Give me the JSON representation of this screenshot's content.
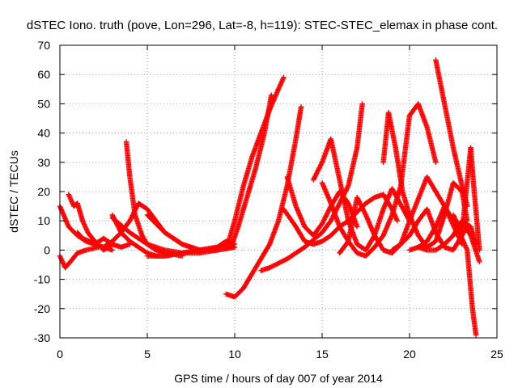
{
  "chart_data": {
    "type": "scatter",
    "title": "dSTEC Iono. truth (pove, Lon=296, Lat=-8, h=119): STEC-STEC_elemax in phase cont.",
    "xlabel": "GPS time / hours of day 007 of year 2014",
    "ylabel": "dSTEC  / TECUs",
    "xlim": [
      0,
      25
    ],
    "ylim": [
      -30,
      70
    ],
    "xticks": [
      0,
      5,
      10,
      15,
      20,
      25
    ],
    "yticks": [
      -30,
      -20,
      -10,
      0,
      10,
      20,
      30,
      40,
      50,
      60,
      70
    ],
    "grid": true,
    "marker": "+",
    "color": "#ff0000",
    "series": [
      {
        "x": [
          0,
          0.5,
          1,
          1.5,
          2,
          2.5,
          3
        ],
        "y": [
          15,
          8,
          5,
          3,
          2,
          1,
          0
        ]
      },
      {
        "x": [
          0,
          0.3,
          0.6,
          1,
          1.5,
          2.2
        ],
        "y": [
          -2,
          -6,
          -4,
          -1,
          0,
          1
        ]
      },
      {
        "x": [
          0.5,
          0.8,
          1,
          1.3,
          1.6,
          2,
          2.5,
          3
        ],
        "y": [
          19,
          15,
          16,
          10,
          6,
          3,
          0,
          2
        ]
      },
      {
        "x": [
          1,
          1.3,
          1.7,
          2,
          2.5,
          3,
          3.5,
          4
        ],
        "y": [
          6,
          4,
          3,
          2,
          4,
          2,
          1,
          2
        ]
      },
      {
        "x": [
          3.8,
          4,
          4.3,
          4.7,
          5,
          5.5,
          6,
          7
        ],
        "y": [
          37,
          25,
          12,
          5,
          2,
          0,
          -1,
          -2
        ]
      },
      {
        "x": [
          3,
          3.5,
          4,
          4.5,
          5,
          5.5,
          6,
          7,
          8,
          9,
          9.7
        ],
        "y": [
          12,
          6,
          3,
          1,
          -1,
          -2,
          -2,
          -1,
          0,
          1,
          2
        ]
      },
      {
        "x": [
          2.5,
          3,
          3.5,
          4,
          4.5,
          5,
          6,
          7,
          8,
          9
        ],
        "y": [
          1,
          3,
          6,
          10,
          16,
          14,
          6,
          2,
          0,
          0
        ]
      },
      {
        "x": [
          3,
          4,
          5,
          6,
          7,
          8,
          9,
          10
        ],
        "y": [
          11,
          6,
          2,
          0,
          -1,
          -1,
          0,
          1
        ]
      },
      {
        "x": [
          5,
          6,
          7,
          8,
          9,
          10
        ],
        "y": [
          12,
          6,
          2,
          0,
          0,
          1
        ]
      },
      {
        "x": [
          5,
          6,
          7,
          8,
          9,
          9.5,
          10
        ],
        "y": [
          -2,
          -2,
          -1,
          0,
          1,
          3,
          2
        ]
      },
      {
        "x": [
          9.6,
          10,
          10.5,
          11,
          11.5,
          12,
          12.5,
          12.8
        ],
        "y": [
          2,
          10,
          22,
          32,
          40,
          48,
          55,
          59
        ]
      },
      {
        "x": [
          9.8,
          10.2,
          10.7,
          11.2,
          11.7,
          12.1
        ],
        "y": [
          1,
          8,
          18,
          28,
          40,
          53
        ]
      },
      {
        "x": [
          9.5,
          10,
          10.5,
          11,
          11.5,
          12,
          12.5,
          13,
          13.5,
          13.8
        ],
        "y": [
          -15,
          -16,
          -13,
          -8,
          -3,
          2,
          10,
          22,
          38,
          49
        ]
      },
      {
        "x": [
          12.8,
          13.5,
          14,
          14.5,
          15,
          15.5,
          16,
          16.5,
          17,
          17.5,
          18,
          18.5,
          19,
          19.3
        ],
        "y": [
          14,
          8,
          3,
          2,
          3,
          5,
          8,
          10,
          13,
          16,
          18,
          19,
          14,
          10
        ]
      },
      {
        "x": [
          11.5,
          12,
          13,
          14,
          15,
          15.5,
          16,
          16.5,
          17,
          17.3
        ],
        "y": [
          -7,
          -6,
          -3,
          1,
          6,
          10,
          16,
          22,
          35,
          50
        ]
      },
      {
        "x": [
          13,
          13.5,
          14,
          14.5,
          15,
          15.5,
          16,
          16.5,
          17
        ],
        "y": [
          25,
          15,
          8,
          5,
          9,
          15,
          20,
          16,
          8
        ]
      },
      {
        "x": [
          14.5,
          15,
          15.5,
          16,
          16.5,
          17,
          17.5,
          18,
          18.5,
          19,
          20
        ],
        "y": [
          24,
          30,
          38,
          24,
          10,
          2,
          0,
          5,
          14,
          21,
          10
        ]
      },
      {
        "x": [
          15,
          15.5,
          16,
          16.5,
          17,
          17.5,
          18,
          18.5,
          19,
          19.5,
          20,
          20.5,
          21,
          21.5
        ],
        "y": [
          23,
          16,
          8,
          3,
          -1,
          -2,
          1,
          5,
          12,
          22,
          46,
          50,
          42,
          30
        ]
      },
      {
        "x": [
          16,
          16.5,
          17,
          17.5,
          18,
          18.5,
          19,
          19.5,
          20,
          21,
          22,
          23
        ],
        "y": [
          -1,
          3,
          18,
          12,
          5,
          0,
          -1,
          2,
          10,
          25,
          15,
          2
        ]
      },
      {
        "x": [
          18.5,
          18.8,
          19.2,
          19.6,
          20,
          20.5,
          21,
          21.5,
          22,
          22.5,
          23,
          23.3
        ],
        "y": [
          30,
          47,
          35,
          20,
          12,
          5,
          1,
          3,
          12,
          23,
          20,
          10
        ]
      },
      {
        "x": [
          19,
          19.5,
          20,
          20.5,
          21,
          21.5,
          22,
          22.5,
          23,
          23.3
        ],
        "y": [
          0,
          2,
          5,
          10,
          14,
          6,
          1,
          0,
          5,
          8
        ]
      },
      {
        "x": [
          20.5,
          21,
          21.5,
          22,
          22.5,
          23,
          23.5,
          23.8
        ],
        "y": [
          1,
          0,
          0,
          2,
          5,
          10,
          8,
          2
        ]
      },
      {
        "x": [
          21.5,
          22,
          22.5,
          23,
          23.3
        ],
        "y": [
          65,
          50,
          35,
          22,
          15
        ]
      },
      {
        "x": [
          20,
          20.5,
          21,
          21.5,
          22,
          22.5,
          23,
          23.3,
          23.6,
          23.8
        ],
        "y": [
          0,
          1,
          3,
          8,
          15,
          10,
          4,
          0,
          -20,
          -29
        ]
      },
      {
        "x": [
          22.5,
          23,
          23.5,
          23.7,
          24
        ],
        "y": [
          12,
          6,
          35,
          20,
          0
        ]
      },
      {
        "x": [
          23,
          23.5,
          24
        ],
        "y": [
          10,
          5,
          -4
        ]
      }
    ]
  }
}
